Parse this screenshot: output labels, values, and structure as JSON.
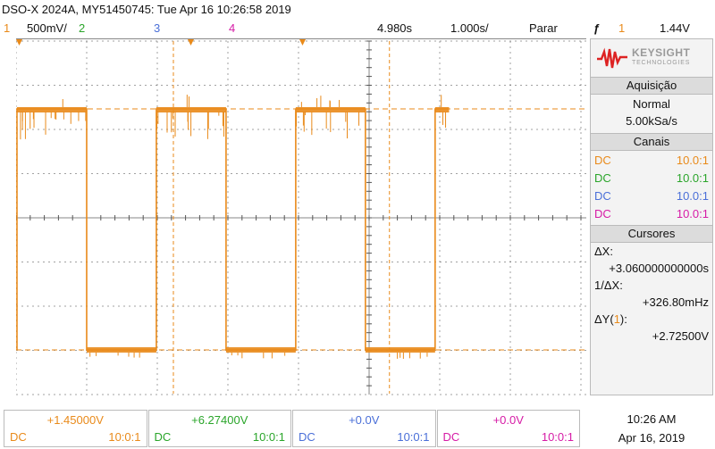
{
  "title": "DSO-X 2024A, MY51450745: Tue Apr 16 10:26:58 2019",
  "status": {
    "ch1_num": "1",
    "ch1_scale": "500mV/",
    "ch2_num": "2",
    "ch3_num": "3",
    "ch4_num": "4",
    "time_delay": "4.980s",
    "time_scale": "1.000s/",
    "run_state": "Parar",
    "trigger_icon": "trigger-edge-icon",
    "trigger_channel": "1",
    "trigger_level": "1.44V"
  },
  "colors": {
    "ch1": "#e98a1a",
    "ch2": "#2aa52a",
    "ch3": "#4a6fd8",
    "ch4": "#d61ba6",
    "grid": "#555555"
  },
  "brand": {
    "name": "KEYSIGHT",
    "sub": "TECHNOLOGIES"
  },
  "acquisition": {
    "header": "Aquisição",
    "mode": "Normal",
    "rate": "5.00kSa/s"
  },
  "channels_panel": {
    "header": "Canais",
    "rows": [
      {
        "coupling": "DC",
        "probe": "10.0:1"
      },
      {
        "coupling": "DC",
        "probe": "10.0:1"
      },
      {
        "coupling": "DC",
        "probe": "10.0:1"
      },
      {
        "coupling": "DC",
        "probe": "10.0:1"
      }
    ]
  },
  "cursors": {
    "header": "Cursores",
    "dx_label": "ΔX:",
    "dx_value": "+3.060000000000s",
    "inv_dx_label": "1/ΔX:",
    "inv_dx_value": "+326.80mHz",
    "dy_label_pre": "ΔY(",
    "dy_label_ch": "1",
    "dy_label_post": "):",
    "dy_value": "+2.72500V"
  },
  "bottom_channels": [
    {
      "offset": "+1.45000V",
      "coupling": "DC",
      "probe": "10:0:1"
    },
    {
      "offset": "+6.27400V",
      "coupling": "DC",
      "probe": "10:0:1"
    },
    {
      "offset": "+0.0V",
      "coupling": "DC",
      "probe": "10:0:1"
    },
    {
      "offset": "+0.0V",
      "coupling": "DC",
      "probe": "10:0:1"
    }
  ],
  "clock": {
    "time": "10:26 AM",
    "date": "Apr 16, 2019"
  },
  "screen_markers": {
    "ground_marker": "1",
    "trigger_marker": "T"
  },
  "waveform": {
    "channel": "1",
    "volts_per_div": 0.5,
    "seconds_per_div": 1.0,
    "high_level_v": 2.725,
    "low_level_v": 0.0,
    "period_s": 2.0,
    "high_intervals_s": [
      [
        0.0,
        1.0
      ],
      [
        2.0,
        3.0
      ],
      [
        4.0,
        5.0
      ],
      [
        6.0,
        6.2
      ]
    ],
    "cursor_x_s": [
      1.0,
      4.06
    ],
    "cursor_y_v": [
      0.0,
      2.725
    ],
    "glitch_count": 70
  }
}
